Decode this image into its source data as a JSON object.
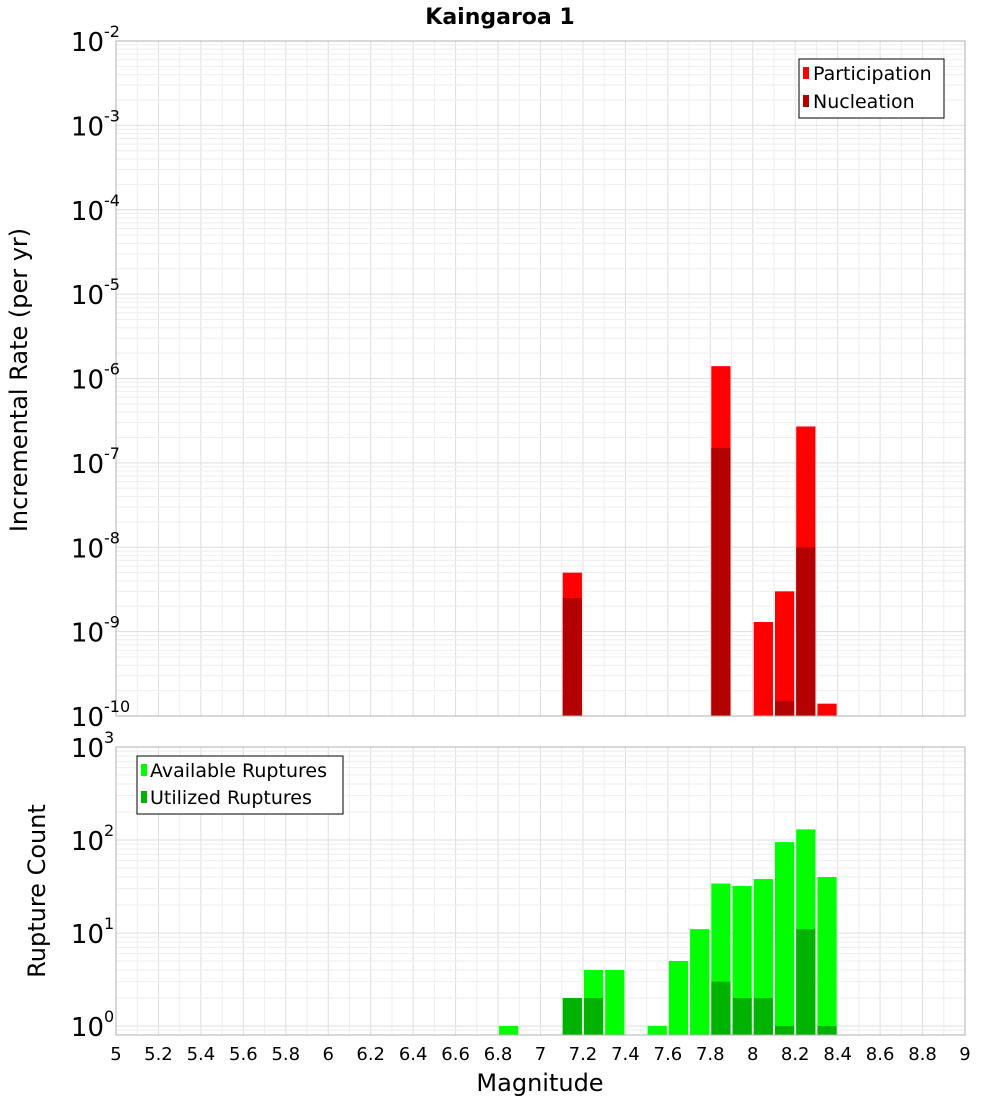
{
  "chart_data": [
    {
      "type": "bar",
      "title": "Kaingaroa 1",
      "ylabel": "Incremental Rate (per yr)",
      "yscale": "log",
      "ylim": [
        1e-10,
        0.01
      ],
      "xlim": [
        5,
        9
      ],
      "grid": true,
      "legend_position": "top-right",
      "bar_width": 0.1,
      "y_ticks": [
        {
          "base": "10",
          "exp": "-2"
        },
        {
          "base": "10",
          "exp": "-3"
        },
        {
          "base": "10",
          "exp": "-4"
        },
        {
          "base": "10",
          "exp": "-5"
        },
        {
          "base": "10",
          "exp": "-6"
        },
        {
          "base": "10",
          "exp": "-7"
        },
        {
          "base": "10",
          "exp": "-8"
        },
        {
          "base": "10",
          "exp": "-9"
        },
        {
          "base": "10",
          "exp": "-10"
        }
      ],
      "series": [
        {
          "name": "Participation",
          "color": "#ff0000",
          "points": [
            [
              7.15,
              5e-09
            ],
            [
              7.85,
              1.4e-06
            ],
            [
              8.05,
              1.3e-09
            ],
            [
              8.15,
              3e-09
            ],
            [
              8.25,
              2.7e-07
            ],
            [
              8.35,
              1.4e-10
            ]
          ]
        },
        {
          "name": "Nucleation",
          "color": "#b30000",
          "points": [
            [
              7.15,
              2.5e-09
            ],
            [
              7.85,
              1.5e-07
            ],
            [
              8.15,
              1.5e-10
            ],
            [
              8.25,
              1e-08
            ]
          ]
        }
      ]
    },
    {
      "type": "bar",
      "title": "",
      "xlabel": "Magnitude",
      "ylabel": "Rupture Count",
      "yscale": "log",
      "ylim": [
        0.8,
        1000
      ],
      "xlim": [
        5,
        9
      ],
      "grid": true,
      "legend_position": "top-left",
      "bar_width": 0.1,
      "x_ticks": [
        "5",
        "5.2",
        "5.4",
        "5.6",
        "5.8",
        "6",
        "6.2",
        "6.4",
        "6.6",
        "6.8",
        "7",
        "7.2",
        "7.4",
        "7.6",
        "7.8",
        "8",
        "8.2",
        "8.4",
        "8.6",
        "8.8",
        "9"
      ],
      "y_ticks": [
        {
          "base": "10",
          "exp": "3"
        },
        {
          "base": "10",
          "exp": "2"
        },
        {
          "base": "10",
          "exp": "1"
        },
        {
          "base": "10",
          "exp": "0"
        }
      ],
      "series": [
        {
          "name": "Available Ruptures",
          "color": "#00ff00",
          "points": [
            [
              6.85,
              1
            ],
            [
              7.15,
              2
            ],
            [
              7.25,
              4
            ],
            [
              7.35,
              4
            ],
            [
              7.55,
              1
            ],
            [
              7.65,
              5
            ],
            [
              7.75,
              11
            ],
            [
              7.85,
              34
            ],
            [
              7.95,
              32
            ],
            [
              8.05,
              38
            ],
            [
              8.15,
              95
            ],
            [
              8.25,
              130
            ],
            [
              8.35,
              40
            ]
          ]
        },
        {
          "name": "Utilized Ruptures",
          "color": "#00b300",
          "points": [
            [
              7.15,
              2
            ],
            [
              7.25,
              2
            ],
            [
              7.85,
              3
            ],
            [
              7.95,
              2
            ],
            [
              8.05,
              2
            ],
            [
              8.15,
              1
            ],
            [
              8.25,
              11
            ],
            [
              8.35,
              1
            ]
          ]
        }
      ]
    }
  ]
}
